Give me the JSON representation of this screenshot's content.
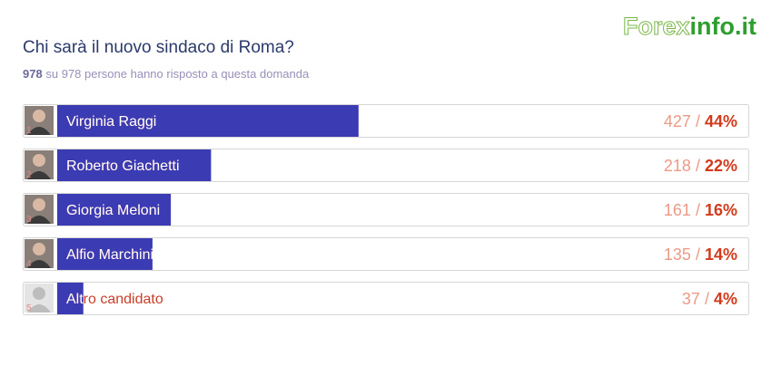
{
  "logo": {
    "part1": "Forex",
    "part2": "info.it"
  },
  "poll": {
    "question": "Chi sarà il nuovo sindaco di Roma?",
    "summary": {
      "answered": 978,
      "connector": "su",
      "total": 978,
      "text": "persone hanno risposto a questa domanda"
    },
    "separator": "/",
    "options": [
      {
        "rank": 1,
        "name": "Virginia Raggi",
        "votes": 427,
        "percent": 44,
        "percent_label": "44%"
      },
      {
        "rank": 2,
        "name": "Roberto Giachetti",
        "votes": 218,
        "percent": 22,
        "percent_label": "22%"
      },
      {
        "rank": 3,
        "name": "Giorgia Meloni",
        "votes": 161,
        "percent": 16,
        "percent_label": "16%"
      },
      {
        "rank": 4,
        "name": "Alfio Marchini",
        "votes": 135,
        "percent": 14,
        "percent_label": "14%"
      },
      {
        "rank": 5,
        "name": "Altro candidato",
        "votes": 37,
        "percent": 4,
        "percent_label": "4%"
      }
    ]
  }
}
